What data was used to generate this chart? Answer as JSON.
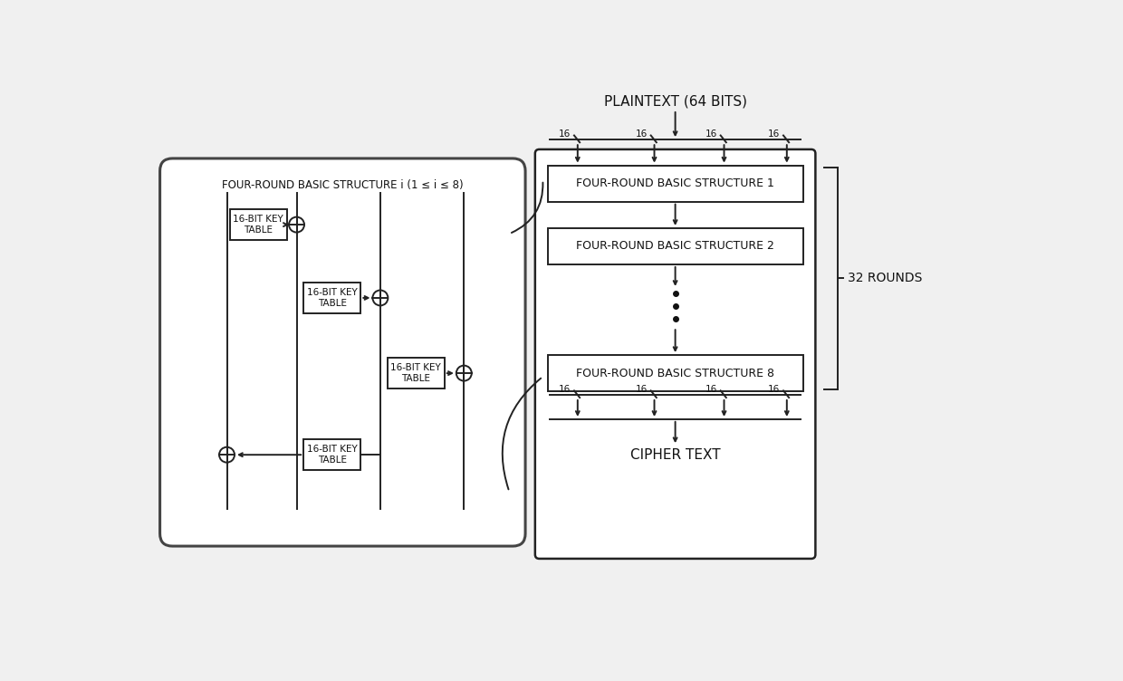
{
  "bg_color": "#f0f0f0",
  "box_fill": "#ffffff",
  "box_edge": "#222222",
  "line_color": "#222222",
  "plaintext_label": "PLAINTEXT (64 BITS)",
  "ciphertext_label": "CIPHER TEXT",
  "rounds_label": "32 ROUNDS",
  "structure_1": "FOUR-ROUND BASIC STRUCTURE 1",
  "structure_2": "FOUR-ROUND BASIC STRUCTURE 2",
  "structure_8": "FOUR-ROUND BASIC STRUCTURE 8",
  "left_title": "FOUR-ROUND BASIC STRUCTURE i (1 ≤ i ≤ 8)",
  "key_table": "16-BIT KEY\nTABLE",
  "bit_label": "16"
}
